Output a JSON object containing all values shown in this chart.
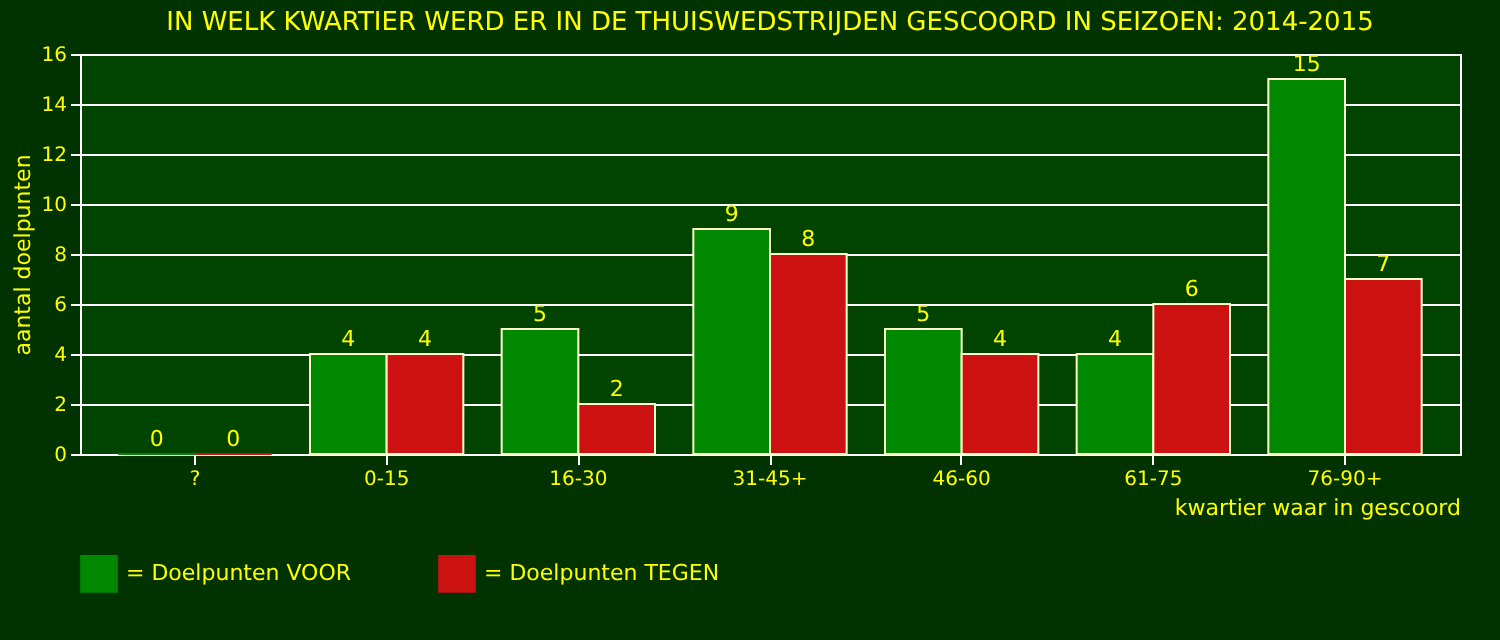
{
  "chart_data": {
    "type": "bar",
    "title": "IN WELK KWARTIER WERD ER IN DE THUISWEDSTRIJDEN GESCOORD IN SEIZOEN: 2014-2015",
    "xlabel": "kwartier waar in gescoord",
    "ylabel": "aantal doelpunten",
    "categories": [
      "?",
      "0-15",
      "16-30",
      "31-45+",
      "46-60",
      "61-75",
      "76-90+"
    ],
    "series": [
      {
        "name": "= Doelpunten VOOR",
        "color": "#008800",
        "values": [
          0,
          4,
          5,
          9,
          5,
          4,
          15
        ]
      },
      {
        "name": "= Doelpunten TEGEN",
        "color": "#cc1111",
        "values": [
          0,
          4,
          2,
          8,
          4,
          6,
          7
        ]
      }
    ],
    "ylim": [
      0,
      16
    ],
    "yticks": [
      0,
      2,
      4,
      6,
      8,
      10,
      12,
      14,
      16
    ],
    "grid": "y",
    "legend": "bottom",
    "data_labels": true
  }
}
